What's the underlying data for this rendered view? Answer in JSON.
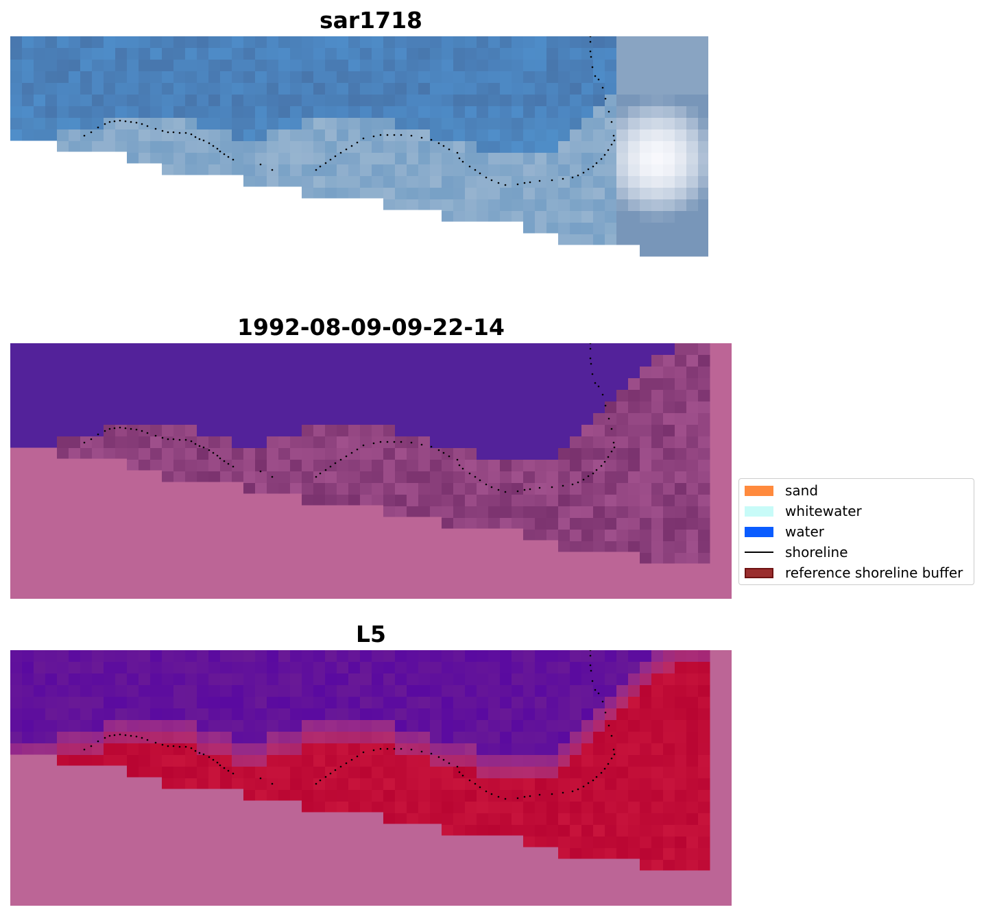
{
  "panels": [
    {
      "title": "sar1718"
    },
    {
      "title": "1992-08-09-09-22-14"
    },
    {
      "title": "L5"
    }
  ],
  "colors": {
    "background_land": "#bc6596",
    "water_class": "#53229a",
    "shoreline_dots": "#000000"
  },
  "legend": {
    "items": [
      {
        "label": "sand",
        "color": "#ff8a3d",
        "kind": "swatch"
      },
      {
        "label": "whitewater",
        "color": "#c8fbf8",
        "kind": "swatch"
      },
      {
        "label": "water",
        "color": "#0a5cff",
        "kind": "swatch"
      },
      {
        "label": "shoreline",
        "color": "#000000",
        "kind": "line"
      },
      {
        "label": "reference shoreline buffer",
        "color": "#9a2e2e",
        "kind": "swatch-outlined"
      }
    ]
  }
}
